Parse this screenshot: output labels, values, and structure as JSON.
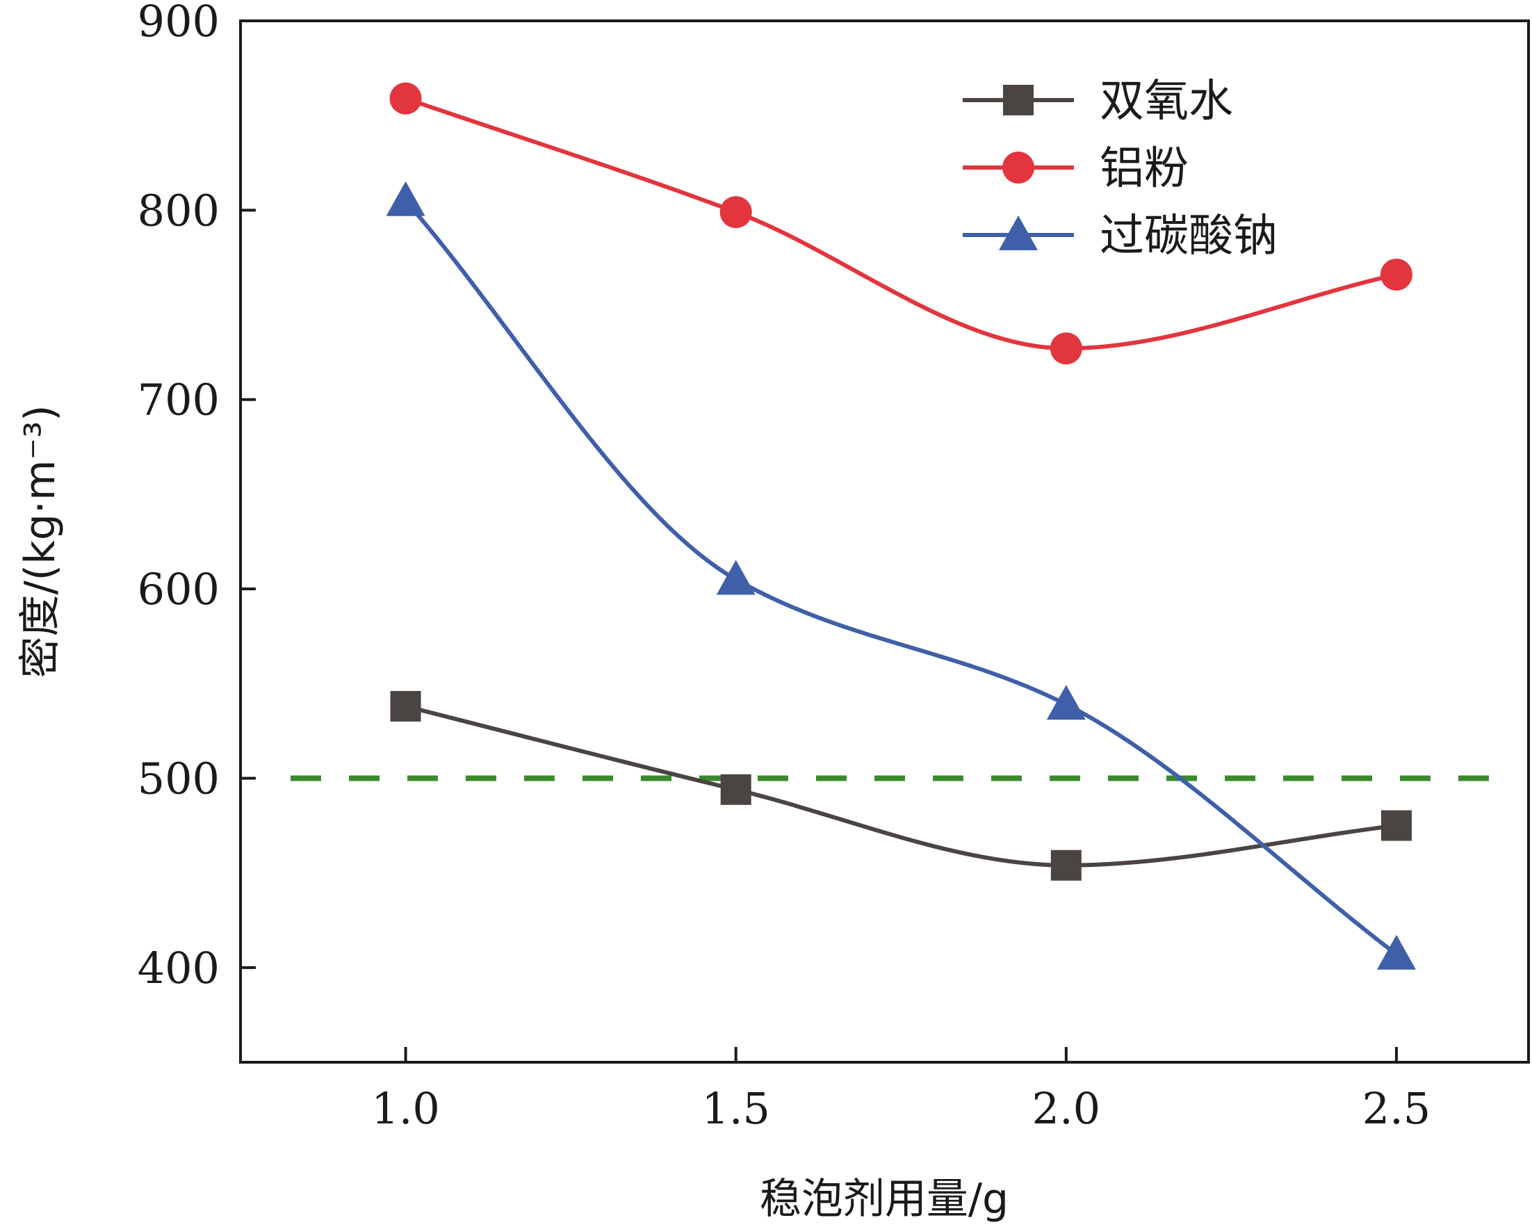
{
  "chart_data": {
    "type": "line",
    "title": "",
    "xlabel": "稳泡剂用量/g",
    "ylabel": "密度/(kg·m⁻³)",
    "x": [
      1.0,
      1.5,
      2.0,
      2.5
    ],
    "x_tick_labels": [
      "1.0",
      "1.5",
      "2.0",
      "2.5"
    ],
    "xlim": [
      0.75,
      2.7
    ],
    "ylim": [
      350,
      900
    ],
    "y_ticks": [
      400,
      500,
      600,
      700,
      800,
      900
    ],
    "y_tick_labels": [
      "400",
      "500",
      "600",
      "700",
      "800",
      "900"
    ],
    "grid": false,
    "legend_position": "top-right",
    "series": [
      {
        "name": "双氧水",
        "marker": "square",
        "color": "#4a4442",
        "values": [
          538,
          494,
          454,
          475
        ]
      },
      {
        "name": "铝粉",
        "marker": "circle",
        "color": "#e2353d",
        "values": [
          859,
          799,
          727,
          766
        ]
      },
      {
        "name": "过碳酸钠",
        "marker": "triangle",
        "color": "#3f5fa8",
        "values": [
          805,
          605,
          539,
          407
        ]
      }
    ],
    "reference_line": {
      "y": 500,
      "style": "dashed",
      "color": "#3a8a2c"
    }
  }
}
